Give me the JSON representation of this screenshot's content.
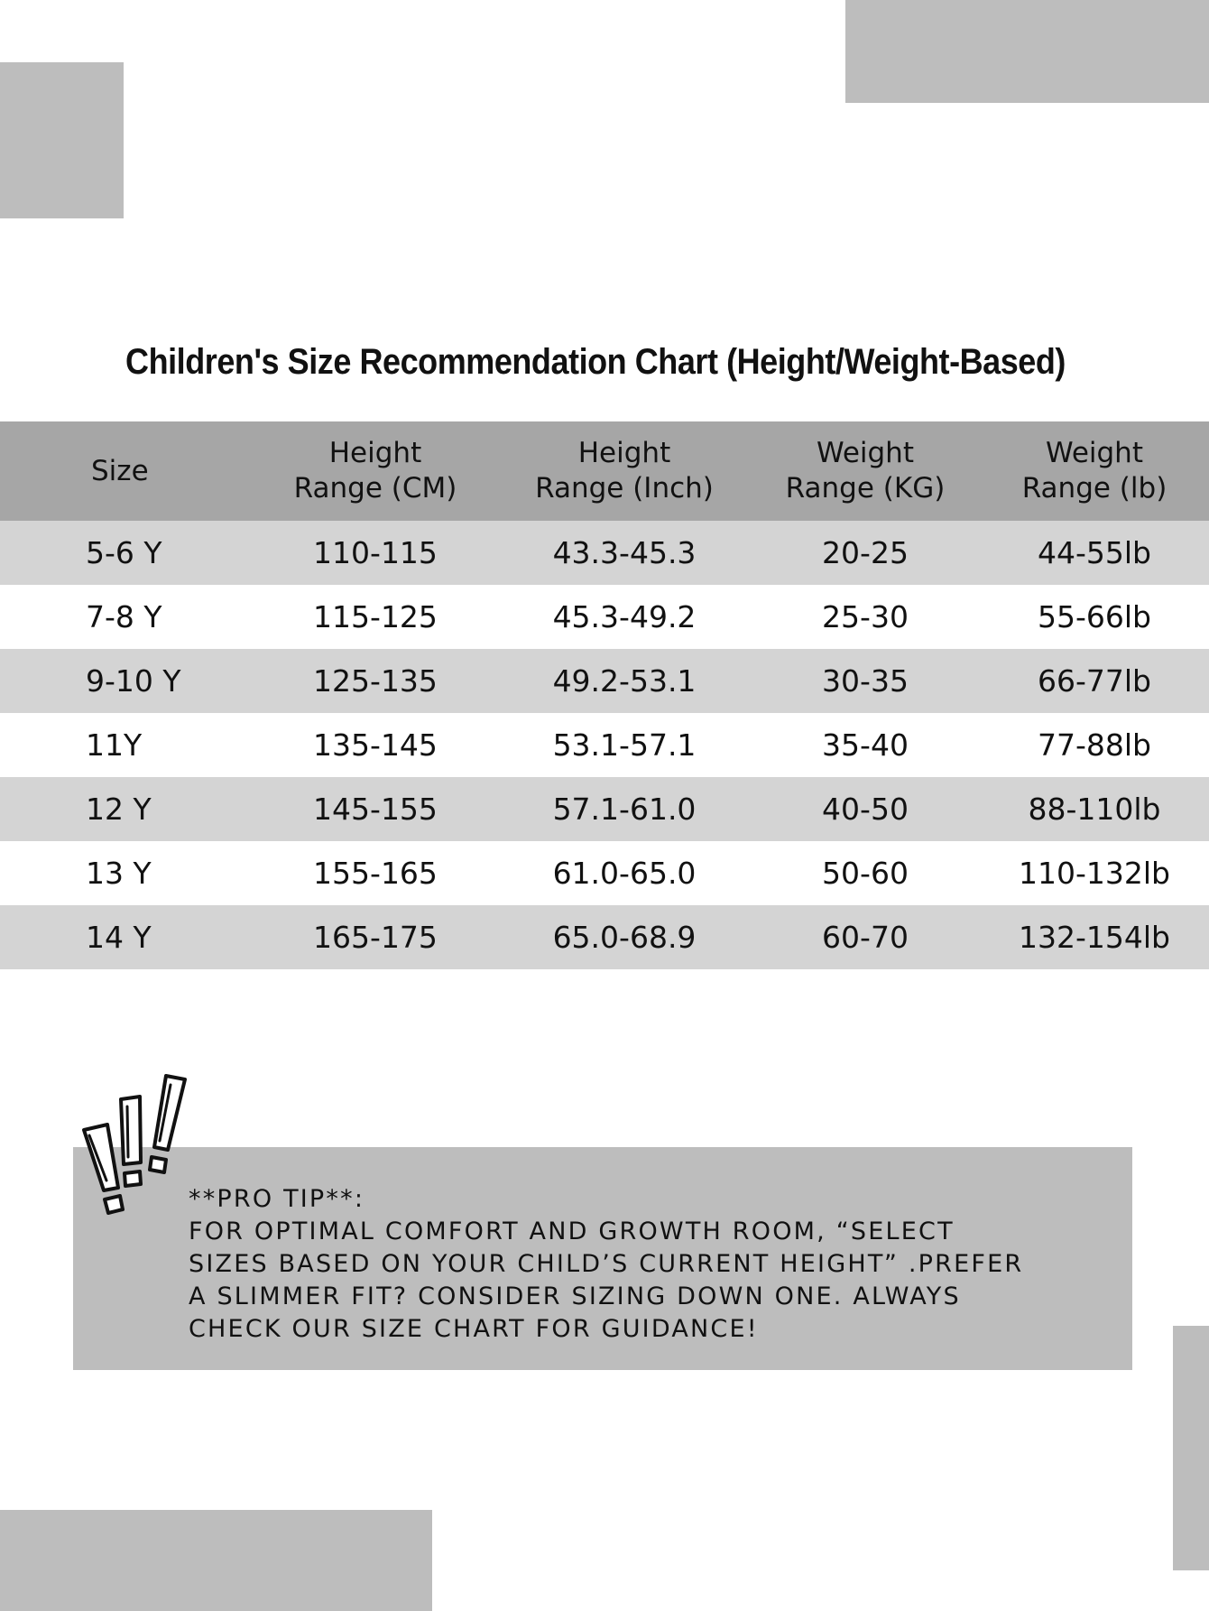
{
  "title": "Children's Size Recommendation Chart (Height/Weight-Based)",
  "table": {
    "headers": [
      "Size",
      "Height\nRange (CM)",
      "Height\nRange (Inch)",
      "Weight\nRange (KG)",
      "Weight\nRange (lb)"
    ],
    "rows": [
      [
        "5-6 Y",
        "110-115",
        "43.3-45.3",
        "20-25",
        "44-55lb"
      ],
      [
        "7-8 Y",
        "115-125",
        "45.3-49.2",
        "25-30",
        "55-66lb"
      ],
      [
        "9-10 Y",
        "125-135",
        "49.2-53.1",
        "30-35",
        "66-77lb"
      ],
      [
        "11Y",
        "135-145",
        "53.1-57.1",
        "35-40",
        "77-88lb"
      ],
      [
        "12 Y",
        "145-155",
        "57.1-61.0",
        "40-50",
        "88-110lb"
      ],
      [
        "13 Y",
        "155-165",
        "61.0-65.0",
        "50-60",
        "110-132lb"
      ],
      [
        "14 Y",
        "165-175",
        "65.0-68.9",
        "60-70",
        "132-154lb"
      ]
    ]
  },
  "tip": {
    "text": "**PRO TIP**:\nFOR OPTIMAL COMFORT AND GROWTH ROOM,  “SELECT\nSIZES BASED ON YOUR CHILD’S CURRENT HEIGHT” .PREFER\nA SLIMMER FIT? CONSIDER SIZING DOWN ONE. ALWAYS\nCHECK OUR SIZE CHART FOR GUIDANCE!"
  },
  "colors": {
    "header_bg": "#a6a6a6",
    "stripe_bg": "#d4d4d4",
    "block_bg": "#bdbdbd",
    "text": "#111111"
  },
  "icons": [
    "exclamation-marks-icon"
  ]
}
